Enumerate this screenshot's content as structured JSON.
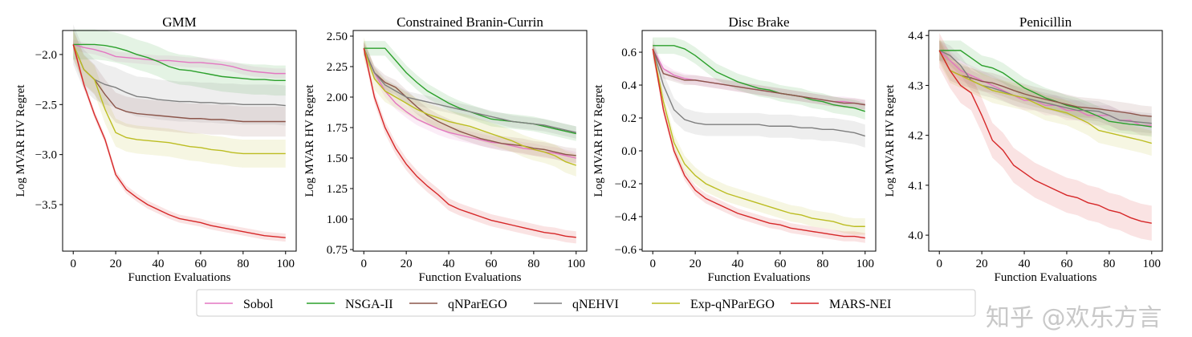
{
  "colors": {
    "Sobol": "#e377c2",
    "NSGA-II": "#2ca02c",
    "qNParEGO": "#8c564b",
    "qNEHVI": "#7f7f7f",
    "Exp-qNParEGO": "#bcbd22",
    "MARS-NEI": "#d62728"
  },
  "legend": [
    "Sobol",
    "NSGA-II",
    "qNParEGO",
    "qNEHVI",
    "Exp-qNParEGO",
    "MARS-NEI"
  ],
  "watermark": "知乎 @欢乐方言",
  "chart_data": [
    {
      "type": "line",
      "title": "GMM",
      "xlabel": "Function Evaluations",
      "ylabel": "Log MVAR HV Regret",
      "xlim": [
        -5,
        105
      ],
      "ylim": [
        -3.965,
        -1.76
      ],
      "xticks": [
        0,
        20,
        40,
        60,
        80,
        100
      ],
      "yticks": [
        -2.0,
        -2.5,
        -3.0,
        -3.5
      ],
      "ytick_labels": [
        "−2.0",
        "−2.5",
        "−3.0",
        "−3.5"
      ],
      "x": [
        0,
        5,
        10,
        15,
        20,
        25,
        30,
        35,
        40,
        45,
        50,
        55,
        60,
        65,
        70,
        75,
        80,
        85,
        90,
        95,
        100
      ],
      "series": [
        {
          "name": "Sobol",
          "band": 0.05,
          "values": [
            -1.9,
            -1.93,
            -1.95,
            -1.98,
            -2.02,
            -2.03,
            -2.04,
            -2.05,
            -2.06,
            -2.06,
            -2.07,
            -2.08,
            -2.08,
            -2.09,
            -2.1,
            -2.12,
            -2.15,
            -2.17,
            -2.18,
            -2.19,
            -2.19
          ]
        },
        {
          "name": "NSGA-II",
          "band": 0.15,
          "values": [
            -1.9,
            -1.9,
            -1.9,
            -1.91,
            -1.93,
            -1.96,
            -2.0,
            -2.03,
            -2.07,
            -2.12,
            -2.15,
            -2.16,
            -2.18,
            -2.2,
            -2.22,
            -2.23,
            -2.24,
            -2.25,
            -2.25,
            -2.26,
            -2.26
          ]
        },
        {
          "name": "qNParEGO",
          "band": 0.15,
          "values": [
            -1.9,
            -2.15,
            -2.25,
            -2.4,
            -2.53,
            -2.57,
            -2.59,
            -2.6,
            -2.61,
            -2.62,
            -2.63,
            -2.64,
            -2.64,
            -2.65,
            -2.65,
            -2.66,
            -2.67,
            -2.67,
            -2.67,
            -2.67,
            -2.67
          ]
        },
        {
          "name": "qNEHVI",
          "band": 0.2,
          "values": [
            -1.9,
            -2.15,
            -2.25,
            -2.3,
            -2.33,
            -2.38,
            -2.42,
            -2.43,
            -2.45,
            -2.46,
            -2.47,
            -2.47,
            -2.48,
            -2.48,
            -2.49,
            -2.49,
            -2.5,
            -2.5,
            -2.5,
            -2.5,
            -2.51
          ]
        },
        {
          "name": "Exp-qNParEGO",
          "band": 0.14,
          "values": [
            -1.9,
            -2.15,
            -2.25,
            -2.55,
            -2.78,
            -2.83,
            -2.85,
            -2.86,
            -2.87,
            -2.88,
            -2.9,
            -2.92,
            -2.93,
            -2.95,
            -2.96,
            -2.98,
            -2.99,
            -2.99,
            -2.99,
            -2.99,
            -2.99
          ]
        },
        {
          "name": "MARS-NEI",
          "band": 0.04,
          "values": [
            -1.9,
            -2.3,
            -2.6,
            -2.85,
            -3.2,
            -3.35,
            -3.43,
            -3.5,
            -3.55,
            -3.6,
            -3.64,
            -3.66,
            -3.68,
            -3.71,
            -3.73,
            -3.75,
            -3.77,
            -3.79,
            -3.81,
            -3.82,
            -3.83
          ]
        }
      ]
    },
    {
      "type": "line",
      "title": "Constrained Branin-Currin",
      "xlabel": "Function Evaluations",
      "ylabel": "Log MVAR HV Regret",
      "xlim": [
        -5,
        105
      ],
      "ylim": [
        0.737,
        2.546
      ],
      "xticks": [
        0,
        20,
        40,
        60,
        80,
        100
      ],
      "yticks": [
        0.75,
        1.0,
        1.25,
        1.5,
        1.75,
        2.0,
        2.25,
        2.5
      ],
      "ytick_labels": [
        "0.75",
        "1.00",
        "1.25",
        "1.50",
        "1.75",
        "2.00",
        "2.25",
        "2.50"
      ],
      "x": [
        0,
        5,
        10,
        15,
        20,
        25,
        30,
        35,
        40,
        45,
        50,
        55,
        60,
        65,
        70,
        75,
        80,
        85,
        90,
        95,
        100
      ],
      "series": [
        {
          "name": "Sobol",
          "band": 0.05,
          "values": [
            2.4,
            2.2,
            2.05,
            1.95,
            1.88,
            1.82,
            1.78,
            1.74,
            1.71,
            1.69,
            1.67,
            1.65,
            1.63,
            1.62,
            1.6,
            1.58,
            1.57,
            1.55,
            1.54,
            1.52,
            1.5
          ]
        },
        {
          "name": "NSGA-II",
          "band": 0.06,
          "values": [
            2.4,
            2.4,
            2.4,
            2.3,
            2.2,
            2.12,
            2.05,
            2.0,
            1.95,
            1.91,
            1.88,
            1.85,
            1.82,
            1.81,
            1.8,
            1.79,
            1.78,
            1.76,
            1.74,
            1.72,
            1.7
          ]
        },
        {
          "name": "qNParEGO",
          "band": 0.06,
          "values": [
            2.4,
            2.2,
            2.12,
            2.08,
            2.0,
            1.92,
            1.85,
            1.8,
            1.76,
            1.72,
            1.69,
            1.66,
            1.64,
            1.62,
            1.61,
            1.6,
            1.58,
            1.57,
            1.55,
            1.53,
            1.52
          ]
        },
        {
          "name": "qNEHVI",
          "band": 0.05,
          "values": [
            2.4,
            2.2,
            2.1,
            2.05,
            2.0,
            1.98,
            1.96,
            1.94,
            1.92,
            1.9,
            1.88,
            1.86,
            1.84,
            1.82,
            1.8,
            1.79,
            1.78,
            1.77,
            1.75,
            1.73,
            1.71
          ]
        },
        {
          "name": "Exp-qNParEGO",
          "band": 0.09,
          "values": [
            2.4,
            2.15,
            2.05,
            2.0,
            1.95,
            1.9,
            1.86,
            1.83,
            1.8,
            1.78,
            1.76,
            1.73,
            1.7,
            1.67,
            1.64,
            1.6,
            1.57,
            1.55,
            1.52,
            1.47,
            1.44
          ]
        },
        {
          "name": "MARS-NEI",
          "band": 0.05,
          "values": [
            2.4,
            2.0,
            1.75,
            1.58,
            1.45,
            1.35,
            1.27,
            1.2,
            1.12,
            1.08,
            1.05,
            1.02,
            0.99,
            0.97,
            0.95,
            0.93,
            0.91,
            0.89,
            0.88,
            0.86,
            0.85
          ]
        }
      ]
    },
    {
      "type": "line",
      "title": "Disc Brake",
      "xlabel": "Function Evaluations",
      "ylabel": "Log MVAR HV Regret",
      "xlim": [
        -5,
        105
      ],
      "ylim": [
        -0.61,
        0.732
      ],
      "xticks": [
        0,
        20,
        40,
        60,
        80,
        100
      ],
      "yticks": [
        -0.6,
        -0.4,
        -0.2,
        0.0,
        0.2,
        0.4,
        0.6
      ],
      "ytick_labels": [
        "−0.6",
        "−0.4",
        "−0.2",
        "0.0",
        "0.2",
        "0.4",
        "0.6"
      ],
      "x": [
        0,
        5,
        10,
        15,
        20,
        25,
        30,
        35,
        40,
        45,
        50,
        55,
        60,
        65,
        70,
        75,
        80,
        85,
        90,
        95,
        100
      ],
      "series": [
        {
          "name": "Sobol",
          "band": 0.03,
          "values": [
            0.62,
            0.5,
            0.46,
            0.44,
            0.43,
            0.42,
            0.41,
            0.4,
            0.39,
            0.38,
            0.37,
            0.36,
            0.35,
            0.34,
            0.33,
            0.32,
            0.31,
            0.3,
            0.3,
            0.29,
            0.28
          ]
        },
        {
          "name": "NSGA-II",
          "band": 0.05,
          "values": [
            0.64,
            0.64,
            0.64,
            0.62,
            0.58,
            0.53,
            0.48,
            0.45,
            0.42,
            0.4,
            0.38,
            0.37,
            0.35,
            0.34,
            0.33,
            0.31,
            0.3,
            0.28,
            0.27,
            0.26,
            0.24
          ]
        },
        {
          "name": "qNParEGO",
          "band": 0.03,
          "values": [
            0.62,
            0.47,
            0.45,
            0.43,
            0.43,
            0.42,
            0.41,
            0.4,
            0.39,
            0.38,
            0.37,
            0.36,
            0.35,
            0.34,
            0.33,
            0.32,
            0.31,
            0.3,
            0.29,
            0.29,
            0.28
          ]
        },
        {
          "name": "qNEHVI",
          "band": 0.07,
          "values": [
            0.62,
            0.4,
            0.25,
            0.19,
            0.17,
            0.16,
            0.16,
            0.16,
            0.16,
            0.16,
            0.16,
            0.15,
            0.15,
            0.15,
            0.14,
            0.14,
            0.13,
            0.13,
            0.12,
            0.11,
            0.09
          ]
        },
        {
          "name": "Exp-qNParEGO",
          "band": 0.05,
          "values": [
            0.62,
            0.3,
            0.05,
            -0.08,
            -0.15,
            -0.2,
            -0.23,
            -0.26,
            -0.28,
            -0.3,
            -0.32,
            -0.34,
            -0.36,
            -0.38,
            -0.39,
            -0.41,
            -0.42,
            -0.43,
            -0.45,
            -0.46,
            -0.46
          ]
        },
        {
          "name": "MARS-NEI",
          "band": 0.03,
          "values": [
            0.62,
            0.25,
            0.0,
            -0.15,
            -0.24,
            -0.29,
            -0.32,
            -0.35,
            -0.38,
            -0.4,
            -0.42,
            -0.44,
            -0.45,
            -0.47,
            -0.48,
            -0.49,
            -0.5,
            -0.51,
            -0.52,
            -0.52,
            -0.53
          ]
        }
      ]
    },
    {
      "type": "line",
      "title": "Penicillin",
      "xlabel": "Function Evaluations",
      "ylabel": "Log MVAR HV Regret",
      "xlim": [
        -5,
        105
      ],
      "ylim": [
        3.968,
        4.41
      ],
      "xticks": [
        0,
        20,
        40,
        60,
        80,
        100
      ],
      "yticks": [
        4.0,
        4.1,
        4.2,
        4.3,
        4.4
      ],
      "ytick_labels": [
        "4.0",
        "4.1",
        "4.2",
        "4.3",
        "4.4"
      ],
      "x": [
        0,
        5,
        10,
        15,
        20,
        25,
        30,
        35,
        40,
        45,
        50,
        55,
        60,
        65,
        70,
        75,
        80,
        85,
        90,
        95,
        100
      ],
      "series": [
        {
          "name": "Sobol",
          "band": 0.02,
          "values": [
            4.37,
            4.35,
            4.33,
            4.32,
            4.31,
            4.3,
            4.29,
            4.28,
            4.27,
            4.27,
            4.26,
            4.26,
            4.25,
            4.25,
            4.24,
            4.24,
            4.24,
            4.23,
            4.23,
            4.22,
            4.22
          ]
        },
        {
          "name": "NSGA-II",
          "band": 0.02,
          "values": [
            4.37,
            4.37,
            4.37,
            4.355,
            4.34,
            4.335,
            4.325,
            4.31,
            4.295,
            4.285,
            4.275,
            4.268,
            4.26,
            4.255,
            4.247,
            4.238,
            4.228,
            4.225,
            4.222,
            4.22,
            4.217
          ]
        },
        {
          "name": "qNParEGO",
          "band": 0.02,
          "values": [
            4.37,
            4.33,
            4.32,
            4.315,
            4.308,
            4.305,
            4.298,
            4.29,
            4.283,
            4.277,
            4.272,
            4.267,
            4.262,
            4.257,
            4.255,
            4.253,
            4.25,
            4.247,
            4.244,
            4.24,
            4.238
          ]
        },
        {
          "name": "qNEHVI",
          "band": 0.02,
          "values": [
            4.37,
            4.36,
            4.34,
            4.31,
            4.3,
            4.295,
            4.288,
            4.28,
            4.275,
            4.27,
            4.265,
            4.26,
            4.255,
            4.25,
            4.25,
            4.248,
            4.24,
            4.23,
            4.228,
            4.226,
            4.224
          ]
        },
        {
          "name": "Exp-qNParEGO",
          "band": 0.025,
          "values": [
            4.37,
            4.33,
            4.32,
            4.31,
            4.3,
            4.29,
            4.285,
            4.28,
            4.275,
            4.265,
            4.255,
            4.25,
            4.245,
            4.235,
            4.225,
            4.21,
            4.205,
            4.2,
            4.195,
            4.19,
            4.184
          ]
        },
        {
          "name": "MARS-NEI",
          "band": 0.035,
          "values": [
            4.37,
            4.33,
            4.3,
            4.285,
            4.24,
            4.19,
            4.17,
            4.14,
            4.125,
            4.11,
            4.1,
            4.09,
            4.08,
            4.075,
            4.065,
            4.06,
            4.05,
            4.045,
            4.035,
            4.028,
            4.024
          ]
        }
      ]
    }
  ]
}
